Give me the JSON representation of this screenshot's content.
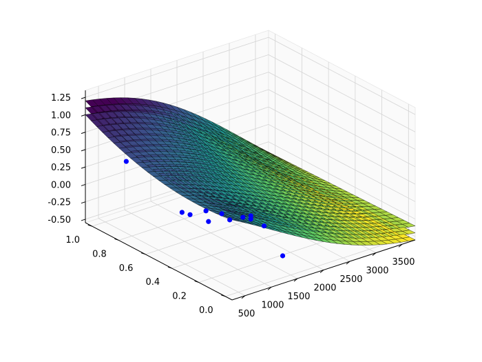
{
  "chart_data": {
    "type": "surface",
    "title": "",
    "xlabel": "",
    "ylabel": "",
    "zlabel": "",
    "x_ticks": [
      "500",
      "1000",
      "1500",
      "2000",
      "2500",
      "3000",
      "3500"
    ],
    "y_ticks": [
      "0.0",
      "0.2",
      "0.4",
      "0.6",
      "0.8",
      "1.0"
    ],
    "z_ticks": [
      "-0.50",
      "-0.25",
      "0.00",
      "0.25",
      "0.50",
      "0.75",
      "1.00",
      "1.25"
    ],
    "xlim": [
      250,
      3750
    ],
    "ylim": [
      -0.05,
      1.05
    ],
    "zlim": [
      -0.55,
      1.35
    ],
    "colormap": "viridis",
    "surface_edge_color": "#000000",
    "scatter_color": "#0000ff",
    "surfaces": [
      {
        "name": "",
        "offset": 0.1
      },
      {
        "name": "",
        "offset": 0.0
      },
      {
        "name": "",
        "offset": -0.1
      }
    ],
    "grid": true,
    "scatter": [
      {
        "x": 700,
        "y": 0.92,
        "z": 0.35
      },
      {
        "x": 900,
        "y": 0.52,
        "z": -0.06
      },
      {
        "x": 950,
        "y": 0.6,
        "z": -0.12
      },
      {
        "x": 1000,
        "y": 0.44,
        "z": 0.05
      },
      {
        "x": 1150,
        "y": 0.48,
        "z": -0.18
      },
      {
        "x": 1200,
        "y": 0.4,
        "z": 0.0
      },
      {
        "x": 1250,
        "y": 0.36,
        "z": -0.06
      },
      {
        "x": 1400,
        "y": 0.32,
        "z": -0.02
      },
      {
        "x": 1450,
        "y": 0.28,
        "z": 0.03
      },
      {
        "x": 1500,
        "y": 0.3,
        "z": -0.05
      },
      {
        "x": 1550,
        "y": 0.22,
        "z": -0.08
      },
      {
        "x": 1600,
        "y": 0.1,
        "z": -0.4
      }
    ]
  }
}
